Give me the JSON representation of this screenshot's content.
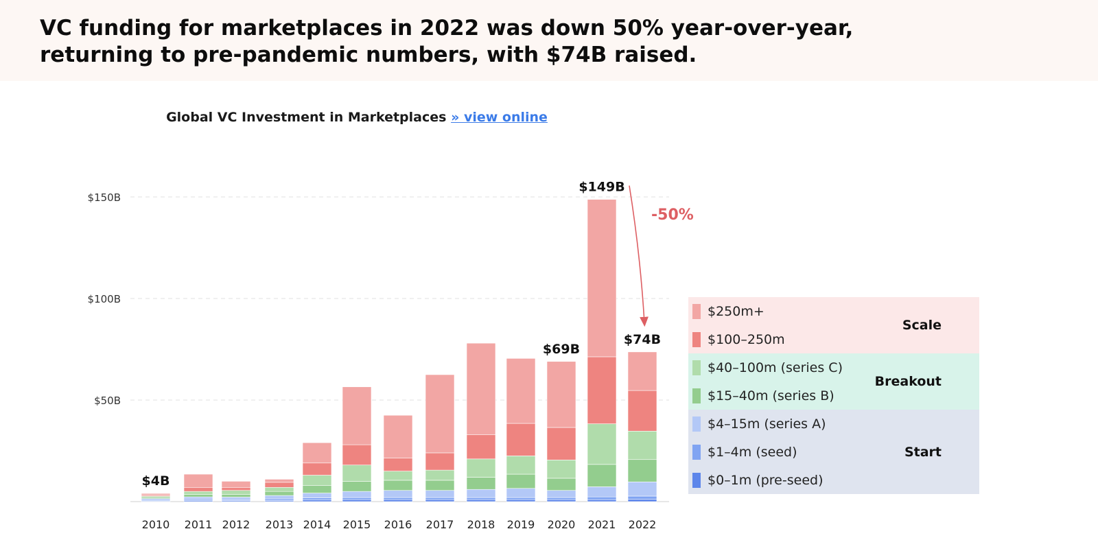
{
  "headline": "VC funding for marketplaces in 2022 was down 50% year-over-year, returning to pre-pandemic numbers, with $74B raised.",
  "chart_title": {
    "text": "Global VC Investment in Marketplaces",
    "link": "» view online"
  },
  "legend": [
    {
      "group": "Scale",
      "color": "#fce8e8",
      "items": [
        {
          "label": "$250m+",
          "color": "#f2a6a4"
        },
        {
          "label": "$100–250m",
          "color": "#ee8480"
        }
      ]
    },
    {
      "group": "Breakout",
      "color": "#d8f3ea",
      "items": [
        {
          "label": "$40–100m (series C)",
          "color": "#b0dcab"
        },
        {
          "label": "$15–40m (series B)",
          "color": "#93cd8e"
        }
      ]
    },
    {
      "group": "Start",
      "color": "#dfe4ef",
      "items": [
        {
          "label": "$4–15m (series A)",
          "color": "#b3c8f7"
        },
        {
          "label": "$1–4m (seed)",
          "color": "#80a4f2"
        },
        {
          "label": "$0–1m (pre-seed)",
          "color": "#5d86ea"
        }
      ]
    }
  ],
  "chart_data": {
    "type": "bar",
    "stacked": true,
    "title": "Global VC Investment in Marketplaces",
    "xlabel": "",
    "ylabel": "",
    "ylim": [
      0,
      150
    ],
    "yticks": [
      50,
      100,
      150
    ],
    "ytick_labels": [
      "$50B",
      "$100B",
      "$150B"
    ],
    "grid": true,
    "categories": [
      "2010",
      "2011",
      "2012",
      "2013",
      "2014",
      "2015",
      "2016",
      "2017",
      "2018",
      "2019",
      "2020",
      "2021",
      "2022"
    ],
    "series": [
      {
        "name": "$0–1m (pre-seed)",
        "color": "#5d86ea",
        "values": [
          0.3,
          0.5,
          0.5,
          0.5,
          0.8,
          1,
          1,
          1,
          1,
          1,
          1,
          1,
          1.2
        ]
      },
      {
        "name": "$1–4m (seed)",
        "color": "#80a4f2",
        "values": [
          0.4,
          0.6,
          0.5,
          0.8,
          1,
          1,
          1,
          1,
          1,
          1,
          1,
          1.3,
          1.5
        ]
      },
      {
        "name": "$4–15m (series A)",
        "color": "#b3c8f7",
        "values": [
          0.8,
          1.2,
          1.2,
          1.7,
          2.4,
          3,
          3.5,
          3.5,
          4,
          4.5,
          3.5,
          5,
          7
        ]
      },
      {
        "name": "$15–40m (series B)",
        "color": "#93cd8e",
        "values": [
          0.6,
          1.2,
          1.3,
          2,
          3.8,
          5,
          5,
          5,
          6,
          7,
          6,
          11,
          11
        ]
      },
      {
        "name": "$40–100m (series C)",
        "color": "#b0dcab",
        "values": [
          0.6,
          1.5,
          2,
          2,
          5,
          8,
          4.5,
          5,
          9,
          9,
          9,
          20,
          14
        ]
      },
      {
        "name": "$100–250m",
        "color": "#ee8480",
        "values": [
          0.5,
          2,
          1.5,
          2.5,
          6,
          10,
          6.5,
          8.5,
          12,
          16,
          16,
          33,
          20
        ]
      },
      {
        "name": "$250m+",
        "color": "#f2a6a4",
        "values": [
          0.8,
          6.5,
          3,
          1.5,
          10,
          28.5,
          21,
          38.5,
          45,
          32,
          32.5,
          77.5,
          19
        ]
      }
    ],
    "annotations": [
      {
        "category": "2010",
        "text": "$4B"
      },
      {
        "category": "2020",
        "text": "$69B"
      },
      {
        "category": "2021",
        "text": "$149B"
      },
      {
        "category": "2022",
        "text": "$74B"
      },
      {
        "from": "2021",
        "to": "2022",
        "text": "-50%",
        "color": "#dd5f63"
      }
    ]
  }
}
